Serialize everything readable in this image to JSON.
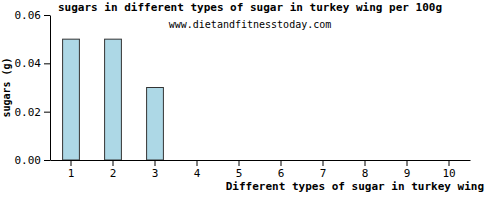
{
  "chart_data": {
    "type": "bar",
    "title": "sugars in different types of sugar in turkey wing per 100g",
    "subtitle": "www.dietandfitnesstoday.com",
    "x_label": "Different types of sugar in turkey wing",
    "y_label": "sugars (g)",
    "categories": [
      "1",
      "2",
      "3",
      "4",
      "5",
      "6",
      "7",
      "8",
      "9",
      "10"
    ],
    "values": [
      0.05,
      0.05,
      0.03,
      0,
      0,
      0,
      0,
      0,
      0,
      0
    ],
    "color": "#add8e6",
    "ylim": [
      0,
      0.06
    ],
    "yticks": [
      {
        "value": 0,
        "label": "0.00"
      },
      0.02,
      0.04,
      0.06
    ],
    "grid": false
  }
}
